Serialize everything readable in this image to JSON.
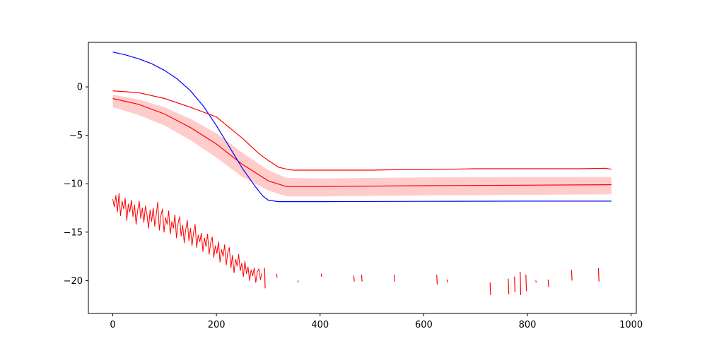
{
  "chart_data": {
    "type": "line",
    "title": "",
    "xlabel": "",
    "ylabel": "",
    "xlim": [
      -47,
      1010
    ],
    "ylim": [
      -23.4,
      4.6
    ],
    "x_ticks": [
      0,
      200,
      400,
      600,
      800,
      1000
    ],
    "x_tick_labels": [
      "0",
      "200",
      "400",
      "600",
      "800",
      "1000"
    ],
    "y_ticks": [
      0,
      -5,
      -10,
      -15,
      -20
    ],
    "y_tick_labels": [
      "0",
      "−5",
      "−10",
      "−15",
      "−20"
    ],
    "grid": false,
    "legend": "none",
    "colors": {
      "red": "#ff0000",
      "blue": "#0000ff",
      "band": "#ff0000"
    },
    "series": [
      {
        "style": "line",
        "color": "#0000ff",
        "points": [
          [
            0,
            3.6
          ],
          [
            25,
            3.3
          ],
          [
            50,
            2.9
          ],
          [
            75,
            2.4
          ],
          [
            100,
            1.7
          ],
          [
            125,
            0.8
          ],
          [
            150,
            -0.4
          ],
          [
            175,
            -2.0
          ],
          [
            200,
            -4.0
          ],
          [
            225,
            -6.2
          ],
          [
            250,
            -8.4
          ],
          [
            275,
            -10.3
          ],
          [
            290,
            -11.3
          ],
          [
            300,
            -11.7
          ],
          [
            320,
            -11.85
          ],
          [
            400,
            -11.85
          ],
          [
            600,
            -11.82
          ],
          [
            800,
            -11.8
          ],
          [
            962,
            -11.8
          ]
        ]
      },
      {
        "style": "line",
        "color": "#ff0000",
        "points": [
          [
            0,
            -0.4
          ],
          [
            50,
            -0.6
          ],
          [
            100,
            -1.2
          ],
          [
            150,
            -2.1
          ],
          [
            200,
            -3.1
          ],
          [
            250,
            -5.3
          ],
          [
            280,
            -6.8
          ],
          [
            300,
            -7.6
          ],
          [
            320,
            -8.3
          ],
          [
            340,
            -8.55
          ],
          [
            350,
            -8.6
          ],
          [
            400,
            -8.6
          ],
          [
            500,
            -8.6
          ],
          [
            550,
            -8.55
          ],
          [
            600,
            -8.55
          ],
          [
            650,
            -8.5
          ],
          [
            700,
            -8.45
          ],
          [
            800,
            -8.45
          ],
          [
            900,
            -8.45
          ],
          [
            950,
            -8.4
          ],
          [
            962,
            -8.5
          ]
        ]
      },
      {
        "style": "band",
        "color": "#ff0000",
        "mean": [
          [
            0,
            -1.2
          ],
          [
            50,
            -1.8
          ],
          [
            100,
            -2.8
          ],
          [
            150,
            -4.2
          ],
          [
            200,
            -5.9
          ],
          [
            250,
            -8.0
          ],
          [
            300,
            -9.7
          ],
          [
            335,
            -10.3
          ],
          [
            400,
            -10.3
          ],
          [
            600,
            -10.2
          ],
          [
            800,
            -10.15
          ],
          [
            962,
            -10.1
          ]
        ],
        "lower": [
          [
            0,
            -2.1
          ],
          [
            50,
            -2.9
          ],
          [
            100,
            -4.0
          ],
          [
            150,
            -5.5
          ],
          [
            200,
            -7.3
          ],
          [
            250,
            -9.3
          ],
          [
            300,
            -10.7
          ],
          [
            335,
            -11.3
          ],
          [
            400,
            -11.3
          ],
          [
            600,
            -11.2
          ],
          [
            800,
            -11.15
          ],
          [
            962,
            -11.1
          ]
        ],
        "upper": [
          [
            0,
            -0.8
          ],
          [
            50,
            -1.3
          ],
          [
            100,
            -2.1
          ],
          [
            150,
            -3.3
          ],
          [
            200,
            -4.8
          ],
          [
            250,
            -6.8
          ],
          [
            300,
            -8.6
          ],
          [
            335,
            -9.4
          ],
          [
            400,
            -9.45
          ],
          [
            600,
            -9.35
          ],
          [
            800,
            -9.3
          ],
          [
            962,
            -9.3
          ]
        ]
      },
      {
        "style": "noisy",
        "color": "#ff0000",
        "points": [
          [
            0,
            -11.6
          ],
          [
            3,
            -12.4
          ],
          [
            6,
            -11.2
          ],
          [
            9,
            -12.9
          ],
          [
            12,
            -11.0
          ],
          [
            15,
            -13.3
          ],
          [
            18,
            -11.8
          ],
          [
            21,
            -12.6
          ],
          [
            24,
            -11.5
          ],
          [
            27,
            -13.8
          ],
          [
            30,
            -12.1
          ],
          [
            33,
            -12.9
          ],
          [
            36,
            -11.7
          ],
          [
            39,
            -13.4
          ],
          [
            42,
            -12.2
          ],
          [
            45,
            -14.2
          ],
          [
            48,
            -12.8
          ],
          [
            51,
            -11.8
          ],
          [
            54,
            -13.6
          ],
          [
            57,
            -12.5
          ],
          [
            60,
            -14.0
          ],
          [
            63,
            -12.3
          ],
          [
            66,
            -13.2
          ],
          [
            69,
            -14.6
          ],
          [
            72,
            -12.7
          ],
          [
            75,
            -13.9
          ],
          [
            78,
            -12.5
          ],
          [
            81,
            -14.4
          ],
          [
            84,
            -13.1
          ],
          [
            87,
            -11.9
          ],
          [
            90,
            -14.8
          ],
          [
            93,
            -13.3
          ],
          [
            96,
            -12.6
          ],
          [
            99,
            -15.0
          ],
          [
            102,
            -13.5
          ],
          [
            105,
            -14.2
          ],
          [
            108,
            -12.8
          ],
          [
            111,
            -15.2
          ],
          [
            114,
            -13.9
          ],
          [
            117,
            -14.6
          ],
          [
            120,
            -13.2
          ],
          [
            123,
            -15.6
          ],
          [
            126,
            -14.1
          ],
          [
            129,
            -13.4
          ],
          [
            132,
            -15.4
          ],
          [
            135,
            -14.3
          ],
          [
            138,
            -16.1
          ],
          [
            141,
            -14.7
          ],
          [
            144,
            -13.8
          ],
          [
            147,
            -15.9
          ],
          [
            150,
            -14.6
          ],
          [
            153,
            -16.4
          ],
          [
            156,
            -15.0
          ],
          [
            159,
            -14.2
          ],
          [
            162,
            -16.6
          ],
          [
            165,
            -15.3
          ],
          [
            168,
            -16.0
          ],
          [
            171,
            -15.1
          ],
          [
            174,
            -17.0
          ],
          [
            177,
            -15.6
          ],
          [
            180,
            -16.5
          ],
          [
            183,
            -15.2
          ],
          [
            186,
            -17.3
          ],
          [
            189,
            -16.1
          ],
          [
            192,
            -15.5
          ],
          [
            195,
            -17.6
          ],
          [
            198,
            -16.4
          ],
          [
            201,
            -17.2
          ],
          [
            204,
            -16.0
          ],
          [
            207,
            -18.1
          ],
          [
            210,
            -16.8
          ],
          [
            213,
            -17.5
          ],
          [
            216,
            -16.3
          ],
          [
            219,
            -18.4
          ],
          [
            222,
            -17.1
          ],
          [
            225,
            -16.6
          ],
          [
            228,
            -18.7
          ],
          [
            231,
            -17.4
          ],
          [
            234,
            -19.2
          ],
          [
            237,
            -17.8
          ],
          [
            240,
            -18.5
          ],
          [
            243,
            -17.3
          ],
          [
            246,
            -19.0
          ],
          [
            249,
            -18.2
          ],
          [
            252,
            -19.6
          ],
          [
            255,
            -18.0
          ],
          [
            258,
            -19.3
          ],
          [
            261,
            -18.6
          ],
          [
            264,
            -20.0
          ],
          [
            267,
            -18.9
          ],
          [
            270,
            -19.5
          ],
          [
            273,
            -18.7
          ],
          [
            276,
            -20.2
          ],
          [
            279,
            -19.1
          ],
          [
            282,
            -18.8
          ],
          [
            285,
            -19.9
          ],
          [
            288,
            -19.2
          ]
        ]
      },
      {
        "style": "segments",
        "color": "#ff0000",
        "segments": [
          [
            [
              293,
              -18.7
            ],
            [
              294,
              -20.8
            ]
          ],
          [
            [
              316,
              -19.3
            ],
            [
              317,
              -19.7
            ]
          ],
          [
            [
              357,
              -20.0
            ],
            [
              358,
              -20.2
            ]
          ],
          [
            [
              402,
              -19.3
            ],
            [
              403,
              -19.6
            ]
          ],
          [
            [
              465,
              -19.5
            ],
            [
              466,
              -20.1
            ]
          ],
          [
            [
              480,
              -19.4
            ],
            [
              481,
              -20.1
            ]
          ],
          [
            [
              543,
              -19.4
            ],
            [
              544,
              -20.1
            ]
          ],
          [
            [
              625,
              -19.4
            ],
            [
              626,
              -20.4
            ]
          ],
          [
            [
              645,
              -19.9
            ],
            [
              646,
              -20.2
            ]
          ],
          [
            [
              728,
              -20.2
            ],
            [
              729,
              -21.5
            ]
          ],
          [
            [
              763,
              -19.8
            ],
            [
              764,
              -21.4
            ]
          ],
          [
            [
              775,
              -19.6
            ],
            [
              776,
              -21.2
            ]
          ],
          [
            [
              786,
              -19.1
            ],
            [
              787,
              -21.5
            ]
          ],
          [
            [
              797,
              -19.4
            ],
            [
              798,
              -21.1
            ]
          ],
          [
            [
              816,
              -20.0
            ],
            [
              817,
              -20.2
            ]
          ],
          [
            [
              840,
              -19.9
            ],
            [
              841,
              -20.7
            ]
          ],
          [
            [
              885,
              -18.9
            ],
            [
              886,
              -20.0
            ]
          ],
          [
            [
              937,
              -18.7
            ],
            [
              938,
              -20.1
            ]
          ]
        ]
      }
    ]
  }
}
